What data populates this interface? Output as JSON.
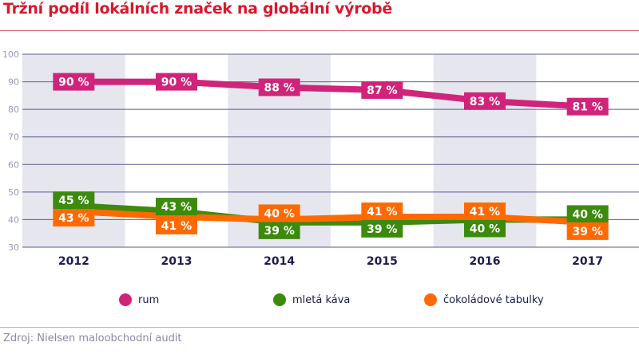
{
  "title": "Tržní podíl lokálních značek na globální výrobě",
  "source": "Zdroj: Nielsen maloobchodní audit",
  "chart_data": {
    "type": "line",
    "title": "Tržní podíl lokálních značek na globální výrobě",
    "categories": [
      "2012",
      "2013",
      "2014",
      "2015",
      "2016",
      "2017"
    ],
    "ylim": [
      30,
      100
    ],
    "yticks": [
      30,
      40,
      50,
      60,
      70,
      80,
      90,
      100
    ],
    "grid": true,
    "legend": "bottom",
    "series": [
      {
        "name": "rum",
        "color": "#d0247a",
        "values": [
          90,
          90,
          88,
          87,
          83,
          81
        ],
        "labels": [
          "90 %",
          "90 %",
          "88 %",
          "87 %",
          "83 %",
          "81 %"
        ]
      },
      {
        "name": "mletá káva",
        "color": "#3c8a0e",
        "values": [
          45,
          43,
          39,
          39,
          40,
          40
        ],
        "labels": [
          "45 %",
          "43 %",
          "39 %",
          "39 %",
          "40 %",
          "40 %"
        ]
      },
      {
        "name": "čokoládové tabulky",
        "color": "#ff6a00",
        "values": [
          43,
          41,
          40,
          41,
          41,
          39
        ],
        "labels": [
          "43 %",
          "41 %",
          "40 %",
          "41 %",
          "41 %",
          "39 %"
        ]
      }
    ]
  }
}
